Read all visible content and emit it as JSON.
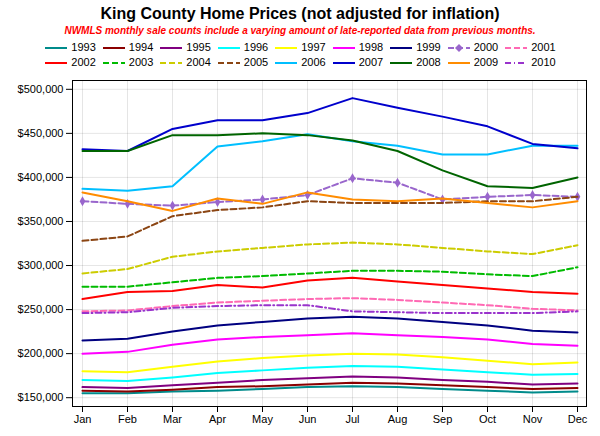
{
  "chart_data": {
    "type": "line",
    "title": "King County Home Prices (not adjusted for inflation)",
    "subtitle": "NWMLS monthly sale counts include a varying amount of late-reported data from previous months.",
    "categories": [
      "Jan",
      "Feb",
      "Mar",
      "Apr",
      "May",
      "Jun",
      "Jul",
      "Aug",
      "Sep",
      "Oct",
      "Nov",
      "Dec"
    ],
    "ylim": [
      140000,
      510000
    ],
    "yticks": [
      {
        "value": 150000,
        "label": "$150,000"
      },
      {
        "value": 200000,
        "label": "$200,000"
      },
      {
        "value": 250000,
        "label": "$250,000"
      },
      {
        "value": 300000,
        "label": "$300,000"
      },
      {
        "value": 350000,
        "label": "$350,000"
      },
      {
        "value": 400000,
        "label": "$400,000"
      },
      {
        "value": 450000,
        "label": "$450,000"
      },
      {
        "value": 500000,
        "label": "$500,000"
      }
    ],
    "grid": true,
    "legend": "top",
    "series": [
      {
        "name": "1993",
        "color": "#008B8B",
        "line_style": "solid",
        "values": [
          155000,
          155000,
          157000,
          158000,
          160000,
          162000,
          163000,
          162000,
          160000,
          158000,
          156000,
          157000
        ]
      },
      {
        "name": "1994",
        "color": "#8B0000",
        "line_style": "solid",
        "values": [
          158000,
          157000,
          159000,
          162000,
          163000,
          165000,
          167000,
          166000,
          164000,
          162000,
          160000,
          161000
        ]
      },
      {
        "name": "1995",
        "color": "#800080",
        "line_style": "solid",
        "values": [
          162000,
          161000,
          164000,
          167000,
          170000,
          172000,
          174000,
          173000,
          170000,
          168000,
          165000,
          166000
        ]
      },
      {
        "name": "1996",
        "color": "#00FFFF",
        "line_style": "solid",
        "values": [
          170000,
          169000,
          173000,
          178000,
          181000,
          184000,
          186000,
          185000,
          182000,
          179000,
          176000,
          177000
        ]
      },
      {
        "name": "1997",
        "color": "#FFFF00",
        "line_style": "solid",
        "values": [
          180000,
          179000,
          185000,
          191000,
          195000,
          198000,
          200000,
          199000,
          196000,
          192000,
          188000,
          190000
        ]
      },
      {
        "name": "1998",
        "color": "#FF00FF",
        "line_style": "solid",
        "values": [
          200000,
          202000,
          210000,
          216000,
          219000,
          221000,
          223000,
          221000,
          219000,
          216000,
          211000,
          209000
        ]
      },
      {
        "name": "1999",
        "color": "#000080",
        "line_style": "solid",
        "values": [
          215000,
          217000,
          225000,
          232000,
          236000,
          240000,
          242000,
          240000,
          236000,
          232000,
          226000,
          224000
        ]
      },
      {
        "name": "2000",
        "color": "#9966CC",
        "line_style": "dashed",
        "marker": "diamond",
        "values": [
          373000,
          370000,
          368000,
          372000,
          375000,
          380000,
          399000,
          394000,
          375000,
          378000,
          380000,
          378000
        ]
      },
      {
        "name": "2001",
        "color": "#FF69B4",
        "line_style": "dashed",
        "values": [
          248000,
          249000,
          254000,
          258000,
          260000,
          262000,
          263000,
          261000,
          258000,
          255000,
          251000,
          249000
        ]
      },
      {
        "name": "2002",
        "color": "#FF0000",
        "line_style": "solid",
        "values": [
          262000,
          270000,
          271000,
          278000,
          275000,
          283000,
          286000,
          282000,
          278000,
          274000,
          270000,
          268000
        ]
      },
      {
        "name": "2003",
        "color": "#00BB00",
        "line_style": "dashed",
        "values": [
          276000,
          276000,
          281000,
          286000,
          288000,
          291000,
          294000,
          294000,
          293000,
          290000,
          288000,
          298000
        ]
      },
      {
        "name": "2004",
        "color": "#CCCC00",
        "line_style": "dashed",
        "values": [
          291000,
          296000,
          310000,
          316000,
          320000,
          324000,
          326000,
          324000,
          320000,
          316000,
          313000,
          323000
        ]
      },
      {
        "name": "2005",
        "color": "#8B4513",
        "line_style": "dashed",
        "values": [
          328000,
          333000,
          356000,
          363000,
          366000,
          373000,
          371000,
          371000,
          371000,
          373000,
          373000,
          378000
        ]
      },
      {
        "name": "2006",
        "color": "#00BFFF",
        "line_style": "solid",
        "values": [
          387000,
          385000,
          390000,
          435000,
          441000,
          449000,
          441000,
          436000,
          426000,
          426000,
          436000,
          436000
        ]
      },
      {
        "name": "2007",
        "color": "#0000CC",
        "line_style": "solid",
        "values": [
          432000,
          430000,
          455000,
          465000,
          465000,
          473000,
          490000,
          479000,
          469000,
          458000,
          438000,
          433000
        ]
      },
      {
        "name": "2008",
        "color": "#006400",
        "line_style": "solid",
        "values": [
          430000,
          430000,
          448000,
          448000,
          450000,
          448000,
          442000,
          430000,
          408000,
          390000,
          388000,
          400000
        ]
      },
      {
        "name": "2009",
        "color": "#FF8C00",
        "line_style": "solid",
        "values": [
          383000,
          373000,
          362000,
          376000,
          370000,
          383000,
          375000,
          373000,
          376000,
          371000,
          366000,
          373000
        ]
      },
      {
        "name": "2010",
        "color": "#9933CC",
        "line_style": "dashdot",
        "values": [
          246000,
          247000,
          252000,
          254000,
          255000,
          255000,
          248000,
          247000,
          246000,
          246000,
          246000,
          248000
        ]
      }
    ]
  }
}
